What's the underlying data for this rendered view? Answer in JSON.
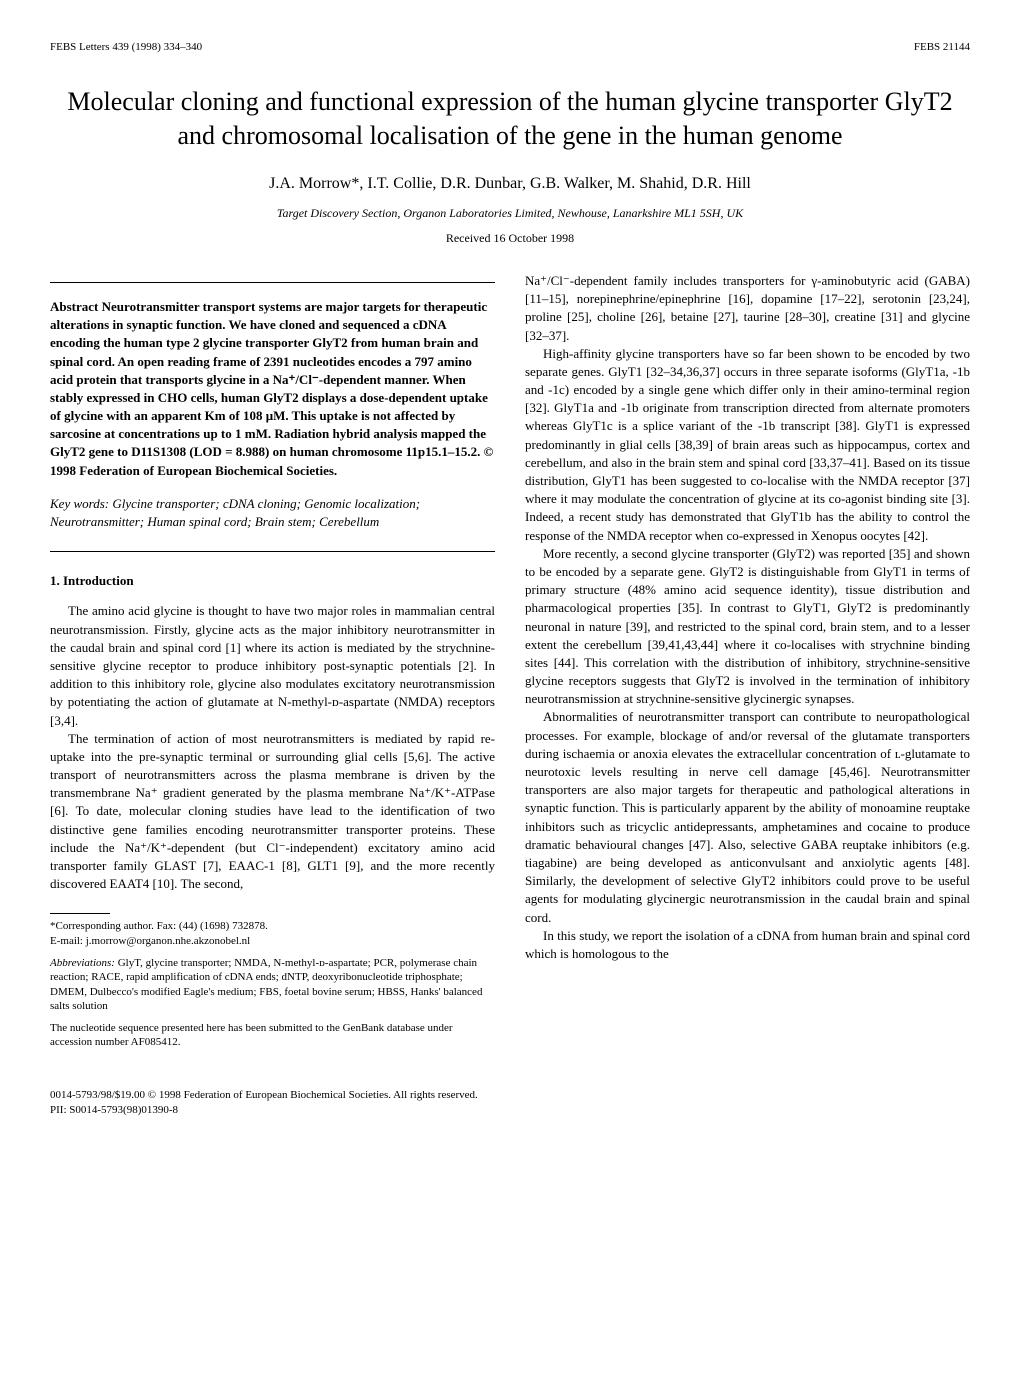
{
  "header": {
    "left": "FEBS Letters 439 (1998) 334–340",
    "right": "FEBS 21144"
  },
  "title": "Molecular cloning and functional expression of the human glycine transporter GlyT2 and chromosomal localisation of the gene in the human genome",
  "authors": "J.A. Morrow*, I.T. Collie, D.R. Dunbar, G.B. Walker, M. Shahid, D.R. Hill",
  "affiliation": "Target Discovery Section, Organon Laboratories Limited, Newhouse, Lanarkshire ML1 5SH, UK",
  "received": "Received 16 October 1998",
  "abstract": {
    "label": "Abstract",
    "text": "Neurotransmitter transport systems are major targets for therapeutic alterations in synaptic function. We have cloned and sequenced a cDNA encoding the human type 2 glycine transporter GlyT2 from human brain and spinal cord. An open reading frame of 2391 nucleotides encodes a 797 amino acid protein that transports glycine in a Na⁺/Cl⁻-dependent manner. When stably expressed in CHO cells, human GlyT2 displays a dose-dependent uptake of glycine with an apparent Km of 108 μM. This uptake is not affected by sarcosine at concentrations up to 1 mM. Radiation hybrid analysis mapped the GlyT2 gene to D11S1308 (LOD = 8.988) on human chromosome 11p15.1–15.2.",
    "copyright": "© 1998 Federation of European Biochemical Societies."
  },
  "keywords": {
    "label": "Key words:",
    "text": "Glycine transporter; cDNA cloning; Genomic localization; Neurotransmitter; Human spinal cord; Brain stem; Cerebellum"
  },
  "section1": {
    "heading": "1. Introduction",
    "paragraphs": [
      "The amino acid glycine is thought to have two major roles in mammalian central neurotransmission. Firstly, glycine acts as the major inhibitory neurotransmitter in the caudal brain and spinal cord [1] where its action is mediated by the strychnine-sensitive glycine receptor to produce inhibitory post-synaptic potentials [2]. In addition to this inhibitory role, glycine also modulates excitatory neurotransmission by potentiating the action of glutamate at N-methyl-ᴅ-aspartate (NMDA) receptors [3,4].",
      "The termination of action of most neurotransmitters is mediated by rapid re-uptake into the pre-synaptic terminal or surrounding glial cells [5,6]. The active transport of neurotransmitters across the plasma membrane is driven by the transmembrane Na⁺ gradient generated by the plasma membrane Na⁺/K⁺-ATPase [6]. To date, molecular cloning studies have lead to the identification of two distinctive gene families encoding neurotransmitter transporter proteins. These include the Na⁺/K⁺-dependent (but Cl⁻-independent) excitatory amino acid transporter family GLAST [7], EAAC-1 [8], GLT1 [9], and the more recently discovered EAAT4 [10]. The second,"
    ]
  },
  "col2_paragraphs": [
    "Na⁺/Cl⁻-dependent family includes transporters for γ-aminobutyric acid (GABA) [11–15], norepinephrine/epinephrine [16], dopamine [17–22], serotonin [23,24], proline [25], choline [26], betaine [27], taurine [28–30], creatine [31] and glycine [32–37].",
    "High-affinity glycine transporters have so far been shown to be encoded by two separate genes. GlyT1 [32–34,36,37] occurs in three separate isoforms (GlyT1a, -1b and -1c) encoded by a single gene which differ only in their amino-terminal region [32]. GlyT1a and -1b originate from transcription directed from alternate promoters whereas GlyT1c is a splice variant of the -1b transcript [38]. GlyT1 is expressed predominantly in glial cells [38,39] of brain areas such as hippocampus, cortex and cerebellum, and also in the brain stem and spinal cord [33,37–41]. Based on its tissue distribution, GlyT1 has been suggested to co-localise with the NMDA receptor [37] where it may modulate the concentration of glycine at its co-agonist binding site [3]. Indeed, a recent study has demonstrated that GlyT1b has the ability to control the response of the NMDA receptor when co-expressed in Xenopus oocytes [42].",
    "More recently, a second glycine transporter (GlyT2) was reported [35] and shown to be encoded by a separate gene. GlyT2 is distinguishable from GlyT1 in terms of primary structure (48% amino acid sequence identity), tissue distribution and pharmacological properties [35]. In contrast to GlyT1, GlyT2 is predominantly neuronal in nature [39], and restricted to the spinal cord, brain stem, and to a lesser extent the cerebellum [39,41,43,44] where it co-localises with strychnine binding sites [44]. This correlation with the distribution of inhibitory, strychnine-sensitive glycine receptors suggests that GlyT2 is involved in the termination of inhibitory neurotransmission at strychnine-sensitive glycinergic synapses.",
    "Abnormalities of neurotransmitter transport can contribute to neuropathological processes. For example, blockage of and/or reversal of the glutamate transporters during ischaemia or anoxia elevates the extracellular concentration of ʟ-glutamate to neurotoxic levels resulting in nerve cell damage [45,46]. Neurotransmitter transporters are also major targets for therapeutic and pathological alterations in synaptic function. This is particularly apparent by the ability of monoamine reuptake inhibitors such as tricyclic antidepressants, amphetamines and cocaine to produce dramatic behavioural changes [47]. Also, selective GABA reuptake inhibitors (e.g. tiagabine) are being developed as anticonvulsant and anxiolytic agents [48]. Similarly, the development of selective GlyT2 inhibitors could prove to be useful agents for modulating glycinergic neurotransmission in the caudal brain and spinal cord.",
    "In this study, we report the isolation of a cDNA from human brain and spinal cord which is homologous to the"
  ],
  "footnotes": {
    "corresponding": "*Corresponding author. Fax: (44) (1698) 732878.",
    "email": "E-mail: j.morrow@organon.nhe.akzonobel.nl",
    "abbreviations_label": "Abbreviations:",
    "abbreviations": "GlyT, glycine transporter; NMDA, N-methyl-ᴅ-aspartate; PCR, polymerase chain reaction; RACE, rapid amplification of cDNA ends; dNTP, deoxyribonucleotide triphosphate; DMEM, Dulbecco's modified Eagle's medium; FBS, foetal bovine serum; HBSS, Hanks' balanced salts solution",
    "genbank": "The nucleotide sequence presented here has been submitted to the GenBank database under accession number AF085412."
  },
  "footer": {
    "copyright": "0014-5793/98/$19.00 © 1998 Federation of European Biochemical Societies. All rights reserved.",
    "pii": "PII: S0014-5793(98)01390-8"
  }
}
